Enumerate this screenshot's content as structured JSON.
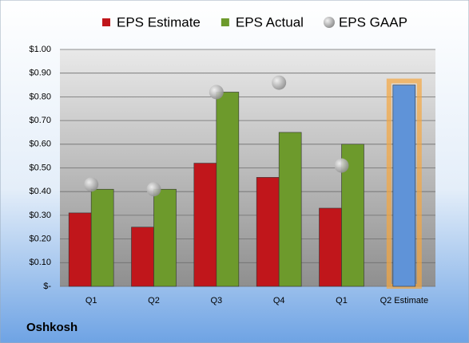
{
  "chart_data": {
    "type": "bar",
    "categories": [
      "Q1",
      "Q2",
      "Q3",
      "Q4",
      "Q1",
      "Q2 Estimate"
    ],
    "series": [
      {
        "name": "EPS Estimate",
        "color": "#c0161b",
        "mark": "bar",
        "point_colors": [
          "#c0161b",
          "#c0161b",
          "#c0161b",
          "#c0161b",
          "#c0161b",
          "#5f93d8"
        ],
        "values": [
          0.31,
          0.25,
          0.52,
          0.46,
          0.33,
          0.85
        ]
      },
      {
        "name": "EPS Actual",
        "color": "#6d9a2c",
        "mark": "bar",
        "values": [
          0.41,
          0.41,
          0.82,
          0.65,
          0.6,
          null
        ]
      },
      {
        "name": "EPS GAAP",
        "color": "#a8a8a8",
        "mark": "circle",
        "values": [
          0.43,
          0.41,
          0.82,
          0.86,
          0.51,
          null
        ]
      }
    ],
    "ylim": [
      0,
      1
    ],
    "yticks": [
      {
        "value": 0,
        "label": "$-"
      },
      {
        "value": 0.1,
        "label": "$0.10"
      },
      {
        "value": 0.2,
        "label": "$0.20"
      },
      {
        "value": 0.3,
        "label": "$0.30"
      },
      {
        "value": 0.4,
        "label": "$0.40"
      },
      {
        "value": 0.5,
        "label": "$0.50"
      },
      {
        "value": 0.6,
        "label": "$0.60"
      },
      {
        "value": 0.7,
        "label": "$0.70"
      },
      {
        "value": 0.8,
        "label": "$0.80"
      },
      {
        "value": 0.9,
        "label": "$0.90"
      },
      {
        "value": 1,
        "label": "$1.00"
      }
    ],
    "grid": true,
    "legend": "top",
    "footer": "Oshkosh"
  }
}
